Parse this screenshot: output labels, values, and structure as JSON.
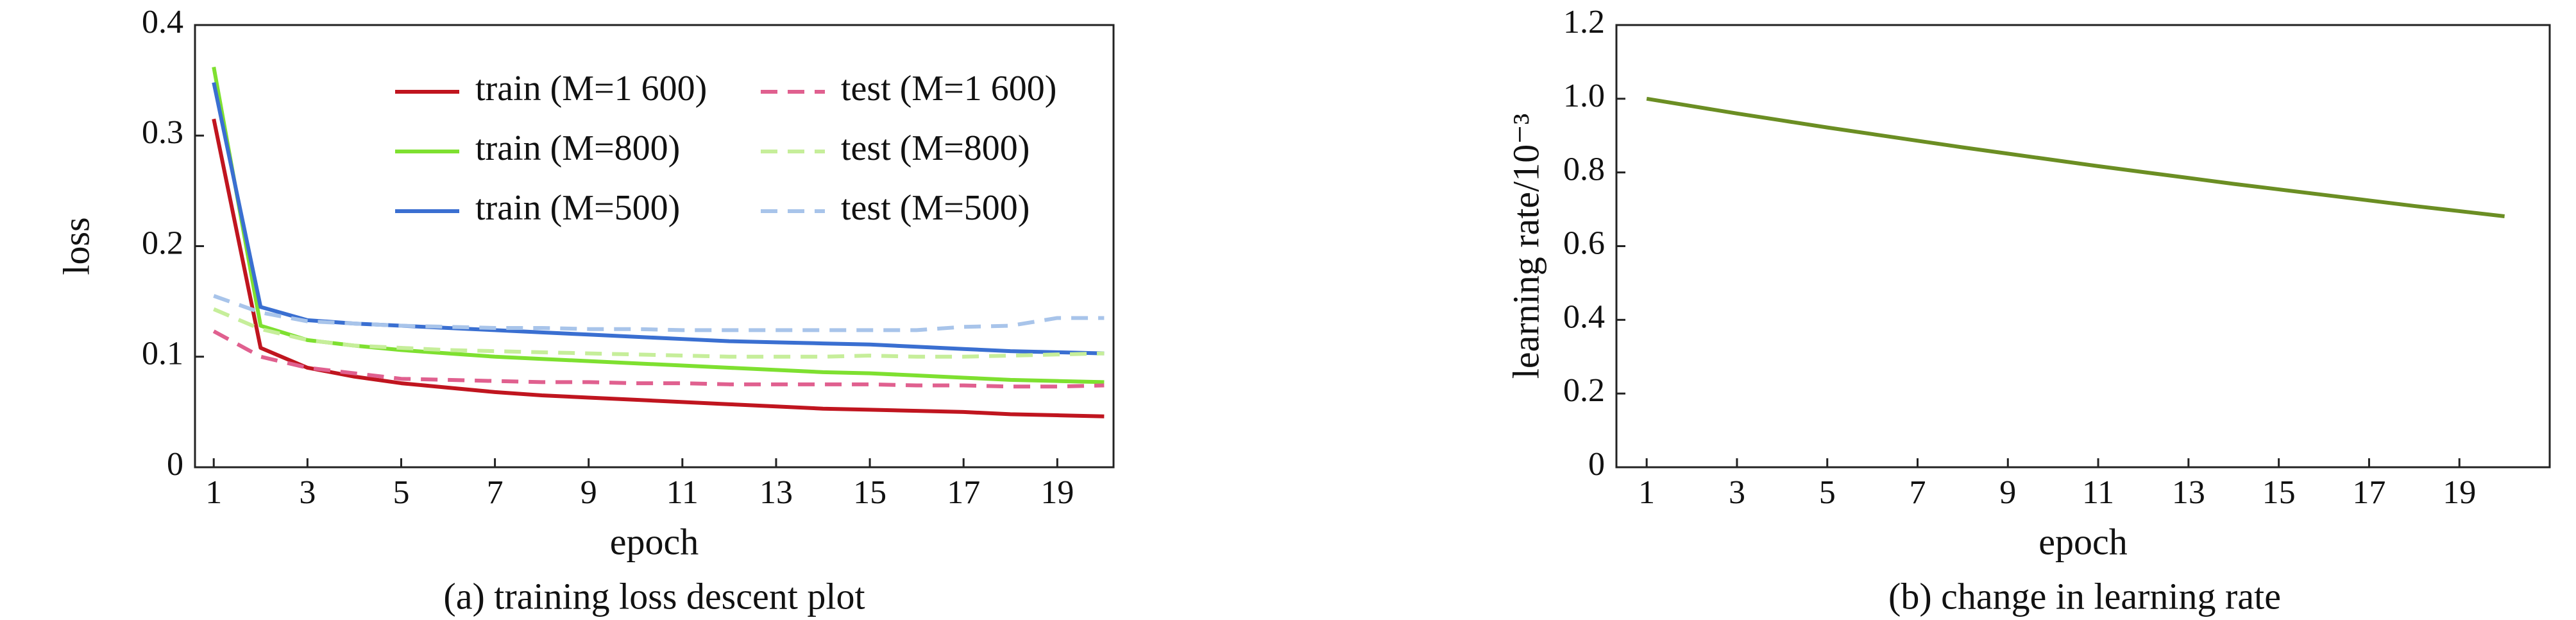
{
  "chart_data": [
    {
      "type": "line",
      "xlabel": "epoch",
      "ylabel": "loss",
      "caption": "(a) training loss descent plot",
      "x": [
        1,
        2,
        3,
        4,
        5,
        6,
        7,
        8,
        9,
        10,
        11,
        12,
        13,
        14,
        15,
        16,
        17,
        18,
        19,
        20
      ],
      "xlim": [
        0.6,
        20.2
      ],
      "xticks": [
        1,
        3,
        5,
        7,
        9,
        11,
        13,
        15,
        17,
        19
      ],
      "ylim": [
        0,
        0.4
      ],
      "yticks": [
        0,
        0.1,
        0.2,
        0.3,
        0.4
      ],
      "legend": "upper right",
      "series": [
        {
          "name": "train (M=1 600)",
          "color": "#c0151f",
          "line_style": "solid",
          "values": [
            0.315,
            0.108,
            0.09,
            0.082,
            0.076,
            0.072,
            0.068,
            0.065,
            0.063,
            0.061,
            0.059,
            0.057,
            0.055,
            0.053,
            0.052,
            0.051,
            0.05,
            0.048,
            0.047,
            0.046
          ]
        },
        {
          "name": "train (M=800)",
          "color": "#7ee030",
          "line_style": "solid",
          "values": [
            0.362,
            0.128,
            0.115,
            0.11,
            0.106,
            0.103,
            0.1,
            0.098,
            0.096,
            0.094,
            0.092,
            0.09,
            0.088,
            0.086,
            0.085,
            0.083,
            0.081,
            0.079,
            0.078,
            0.077
          ]
        },
        {
          "name": "train (M=500)",
          "color": "#3a6fd1",
          "line_style": "solid",
          "values": [
            0.348,
            0.145,
            0.133,
            0.13,
            0.128,
            0.126,
            0.124,
            0.122,
            0.12,
            0.118,
            0.116,
            0.114,
            0.113,
            0.112,
            0.111,
            0.109,
            0.107,
            0.105,
            0.104,
            0.103
          ]
        },
        {
          "name": "test (M=1 600)",
          "color": "#e0608f",
          "line_style": "dashed",
          "values": [
            0.123,
            0.1,
            0.09,
            0.085,
            0.08,
            0.079,
            0.078,
            0.077,
            0.077,
            0.076,
            0.076,
            0.075,
            0.075,
            0.075,
            0.075,
            0.074,
            0.074,
            0.073,
            0.073,
            0.074
          ]
        },
        {
          "name": "test (M=800)",
          "color": "#c6ee9a",
          "line_style": "dashed",
          "values": [
            0.143,
            0.125,
            0.115,
            0.11,
            0.108,
            0.106,
            0.105,
            0.104,
            0.103,
            0.102,
            0.101,
            0.1,
            0.1,
            0.1,
            0.101,
            0.1,
            0.1,
            0.101,
            0.102,
            0.103
          ]
        },
        {
          "name": "test (M=500)",
          "color": "#a8c4ea",
          "line_style": "dashed",
          "values": [
            0.155,
            0.14,
            0.132,
            0.13,
            0.128,
            0.127,
            0.126,
            0.126,
            0.125,
            0.125,
            0.124,
            0.124,
            0.124,
            0.124,
            0.124,
            0.124,
            0.127,
            0.128,
            0.135,
            0.135
          ]
        }
      ]
    },
    {
      "type": "line",
      "xlabel": "epoch",
      "ylabel": "learning rate/10⁻³",
      "caption": "(b) change in learning rate",
      "x": [
        1,
        2,
        3,
        4,
        5,
        6,
        7,
        8,
        9,
        10,
        11,
        12,
        13,
        14,
        15,
        16,
        17,
        18,
        19,
        20
      ],
      "xlim": [
        0.33,
        21
      ],
      "xticks": [
        1,
        3,
        5,
        7,
        9,
        11,
        13,
        15,
        17,
        19
      ],
      "ylim": [
        0,
        1.2
      ],
      "yticks": [
        0,
        0.2,
        0.4,
        0.6,
        0.8,
        {
          "value": 1,
          "label": "1.0"
        },
        1.2
      ],
      "series": [
        {
          "color": "#6b8e23",
          "line_style": "solid",
          "values": [
            1,
            0.98,
            0.96,
            0.941,
            0.922,
            0.904,
            0.886,
            0.868,
            0.851,
            0.834,
            0.817,
            0.801,
            0.785,
            0.769,
            0.754,
            0.739,
            0.724,
            0.709,
            0.695,
            0.681
          ]
        }
      ]
    }
  ]
}
